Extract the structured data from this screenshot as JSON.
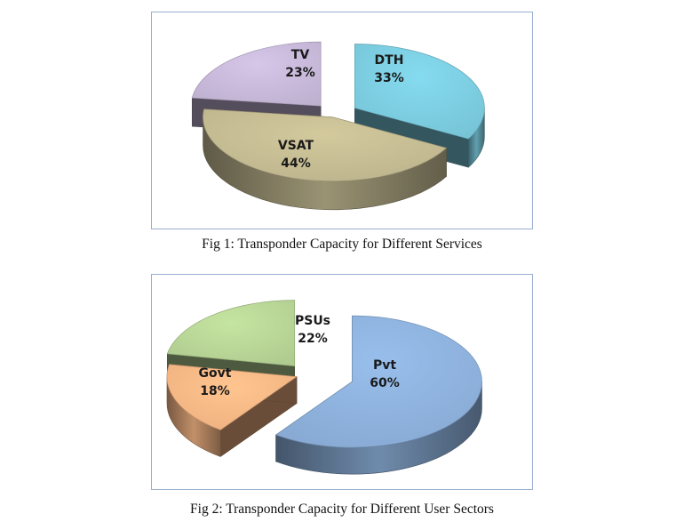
{
  "chart_data": [
    {
      "type": "pie",
      "style": "3d-exploded",
      "caption": "Fig 1: Transponder Capacity for Different Services",
      "categories": [
        "DTH",
        "VSAT",
        "TV"
      ],
      "values": [
        33,
        44,
        23
      ],
      "labels": [
        "33%",
        "44%",
        "23%"
      ],
      "colors": [
        "#7ccde0",
        "#c5bc93",
        "#c8b9da"
      ],
      "title": "",
      "legend": "none"
    },
    {
      "type": "pie",
      "style": "3d-exploded",
      "caption": "Fig 2: Transponder Capacity for Different User Sectors",
      "categories": [
        "Pvt",
        "Govt",
        "PSUs"
      ],
      "values": [
        60,
        18,
        22
      ],
      "labels": [
        "60%",
        "18%",
        "22%"
      ],
      "colors": [
        "#8eb2dd",
        "#f9b886",
        "#b8d696"
      ],
      "title": "",
      "legend": "none"
    }
  ]
}
